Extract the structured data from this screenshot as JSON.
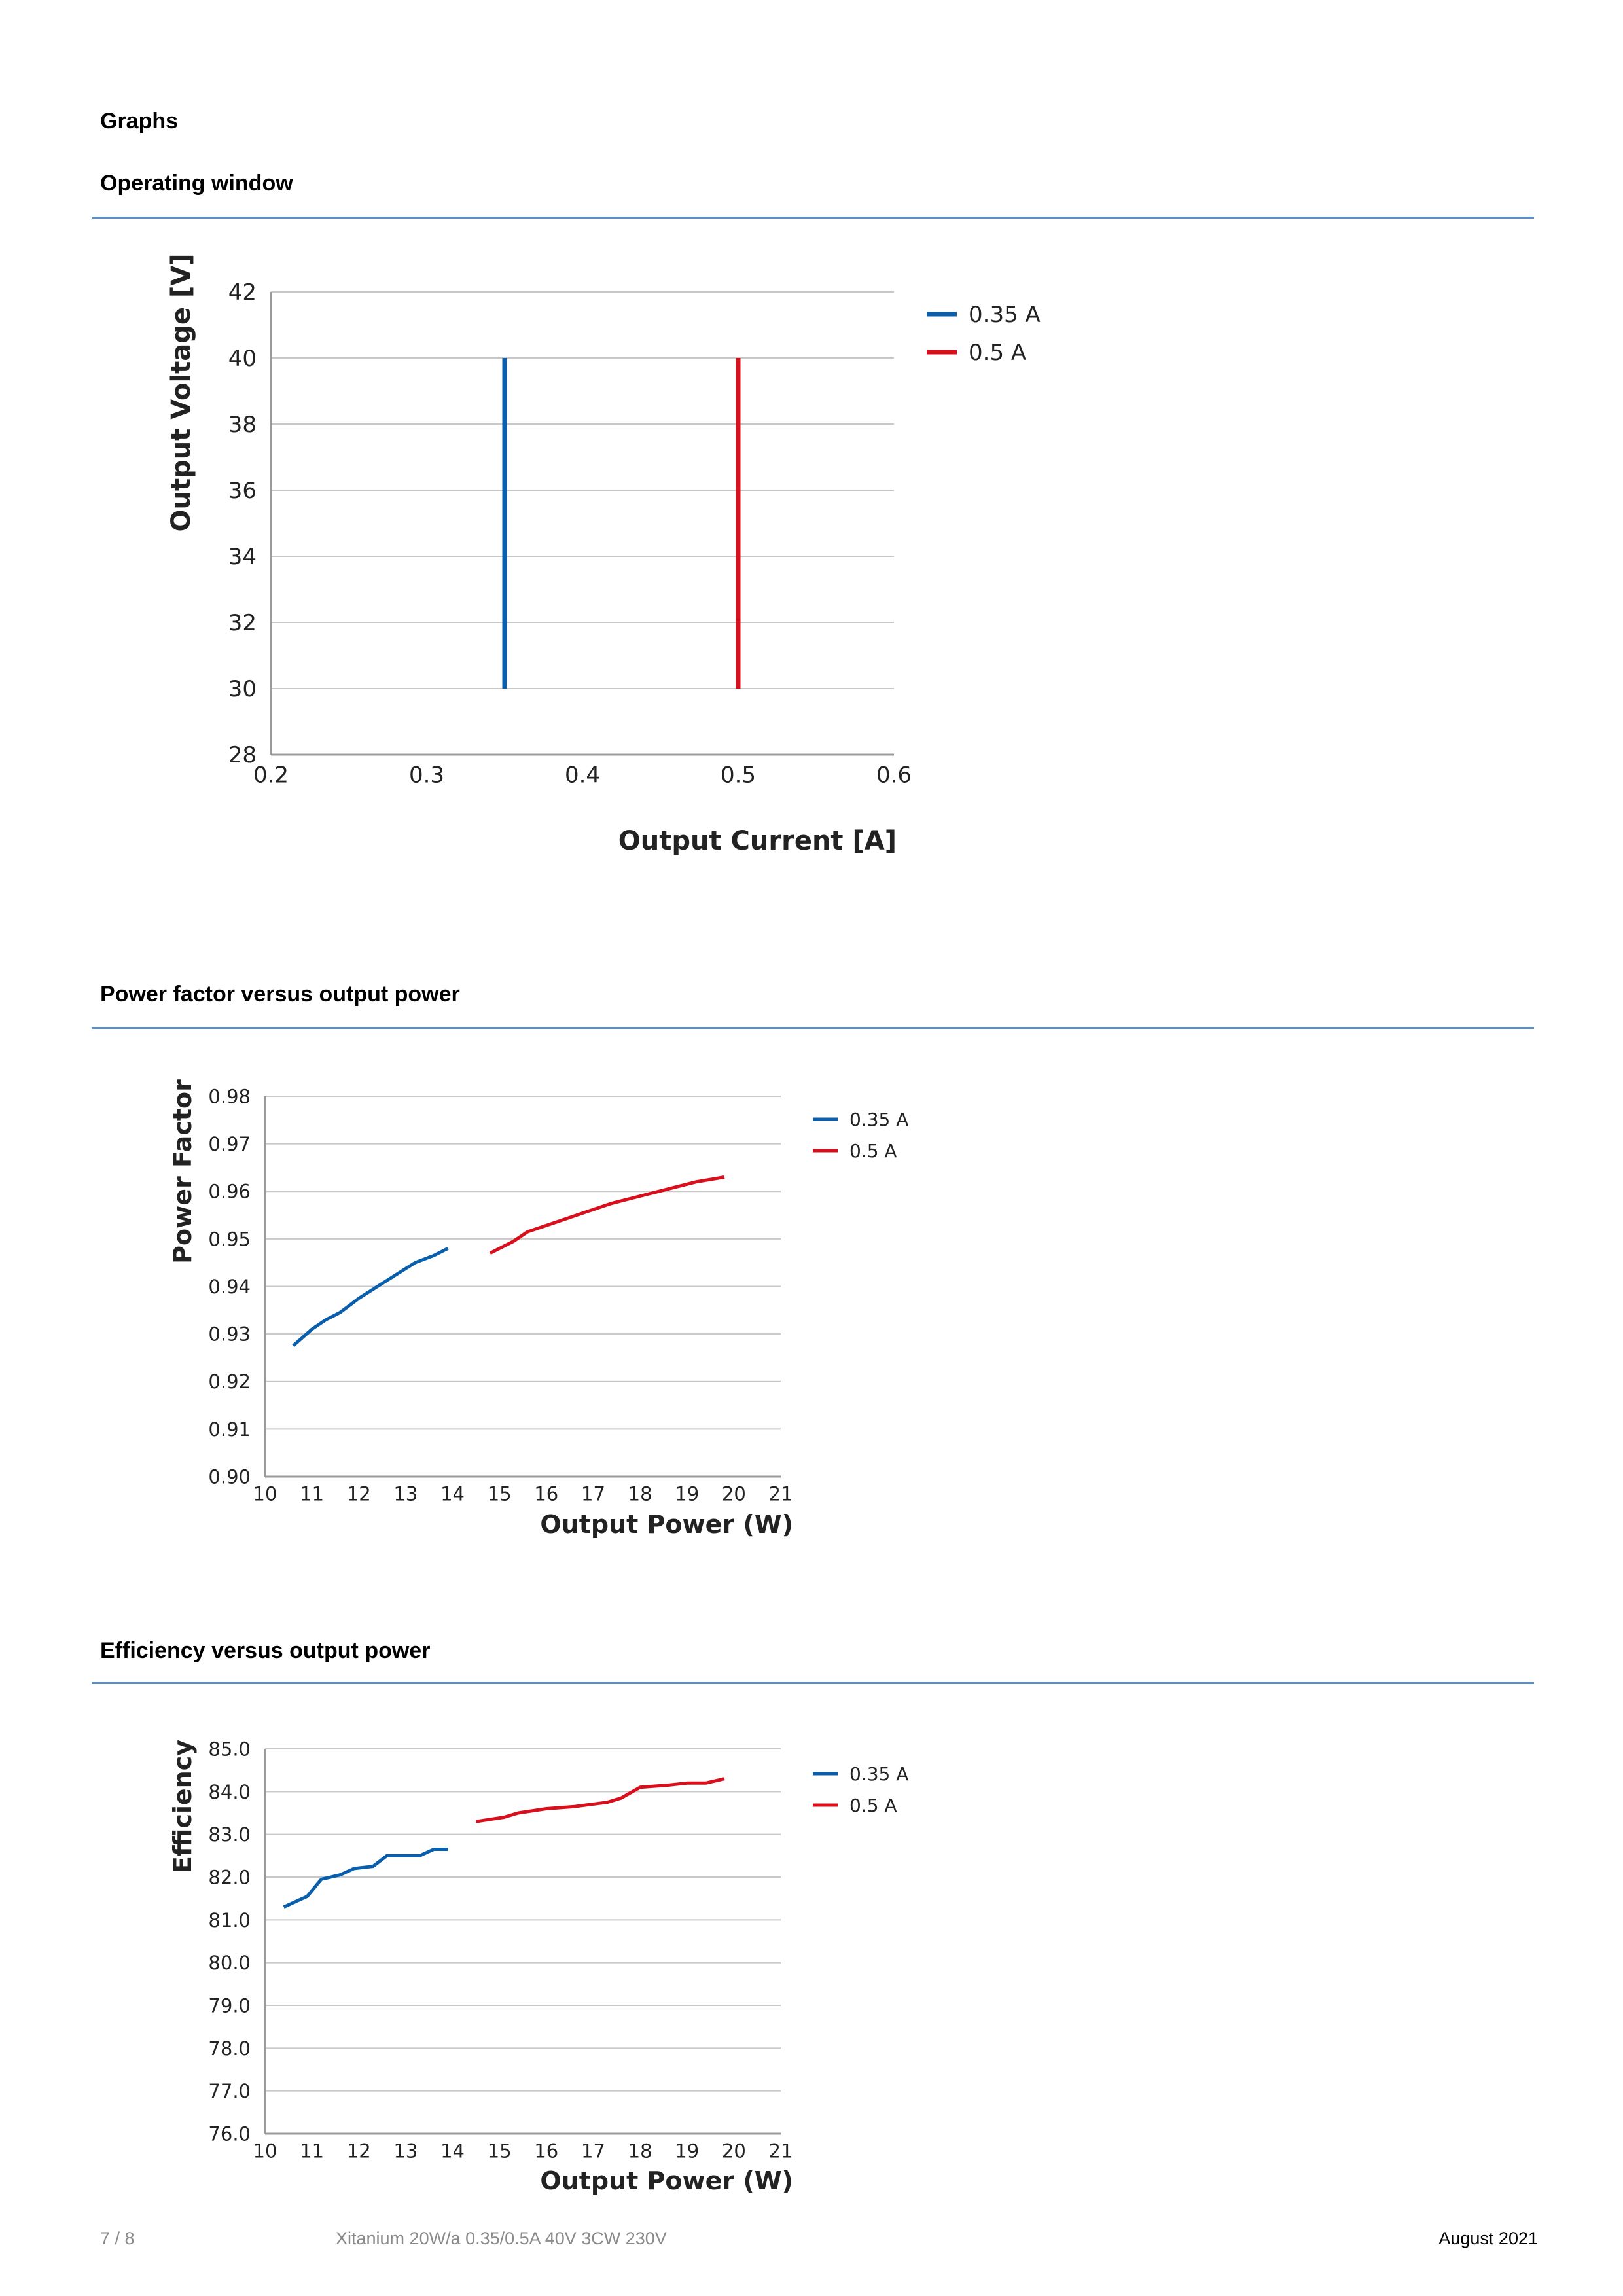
{
  "page": {
    "heading": "Graphs",
    "sections": [
      {
        "title": "Operating window"
      },
      {
        "title": "Power factor versus output power"
      },
      {
        "title": "Efficiency versus output power"
      }
    ],
    "footer": {
      "page_number": "7 / 8",
      "product": "Xitanium 20W/a 0.35/0.5A 40V 3CW 230V",
      "date": "August 2021"
    }
  },
  "colors": {
    "series_035": "#0a5fad",
    "series_05": "#d8101e",
    "rule": "#5b8ec7",
    "grid": "#c8c8c8"
  },
  "chart_data": [
    {
      "type": "line",
      "xlabel": "Output Current [A]",
      "ylabel": "Output Voltage [V]",
      "xlim": [
        0.2,
        0.6
      ],
      "ylim": [
        28,
        42
      ],
      "xticks": [
        "0.2",
        "0.3",
        "0.4",
        "0.5",
        "0.6"
      ],
      "yticks": [
        "28",
        "30",
        "32",
        "34",
        "36",
        "38",
        "40",
        "42"
      ],
      "grid": true,
      "legend_position": "right",
      "series": [
        {
          "name": "0.35 A",
          "color": "#0a5fad",
          "x": [
            0.35,
            0.35
          ],
          "y": [
            30,
            40
          ]
        },
        {
          "name": "0.5 A",
          "color": "#d8101e",
          "x": [
            0.5,
            0.5
          ],
          "y": [
            30,
            40
          ]
        }
      ]
    },
    {
      "type": "line",
      "xlabel": "Output Power (W)",
      "ylabel": "Power Factor",
      "xlim": [
        10,
        21
      ],
      "ylim": [
        0.9,
        0.98
      ],
      "xticks": [
        "10",
        "11",
        "12",
        "13",
        "14",
        "15",
        "16",
        "17",
        "18",
        "19",
        "20",
        "21"
      ],
      "yticks": [
        "0.90",
        "0.91",
        "0.92",
        "0.93",
        "0.94",
        "0.95",
        "0.96",
        "0.97",
        "0.98"
      ],
      "grid": true,
      "legend_position": "right",
      "series": [
        {
          "name": "0.35 A",
          "color": "#0a5fad",
          "x": [
            10.6,
            11.0,
            11.3,
            11.6,
            12.0,
            12.4,
            12.8,
            13.2,
            13.6,
            13.9
          ],
          "y": [
            0.9275,
            0.931,
            0.933,
            0.9345,
            0.9375,
            0.94,
            0.9425,
            0.945,
            0.9465,
            0.948
          ]
        },
        {
          "name": "0.5 A",
          "color": "#d8101e",
          "x": [
            14.8,
            15.3,
            15.6,
            16.2,
            16.8,
            17.4,
            18.0,
            18.6,
            19.2,
            19.8
          ],
          "y": [
            0.947,
            0.9495,
            0.9515,
            0.9535,
            0.9555,
            0.9575,
            0.959,
            0.9605,
            0.962,
            0.963
          ]
        }
      ]
    },
    {
      "type": "line",
      "xlabel": "Output Power (W)",
      "ylabel": "Efficiency",
      "xlim": [
        10,
        21
      ],
      "ylim": [
        76,
        85
      ],
      "xticks": [
        "10",
        "11",
        "12",
        "13",
        "14",
        "15",
        "16",
        "17",
        "18",
        "19",
        "20",
        "21"
      ],
      "yticks": [
        "76.0",
        "77.0",
        "78.0",
        "79.0",
        "80.0",
        "81.0",
        "82.0",
        "83.0",
        "84.0",
        "85.0"
      ],
      "grid": true,
      "legend_position": "right",
      "series": [
        {
          "name": "0.35 A",
          "color": "#0a5fad",
          "x": [
            10.4,
            10.9,
            11.2,
            11.6,
            11.9,
            12.3,
            12.6,
            12.8,
            13.3,
            13.6,
            13.9
          ],
          "y": [
            81.3,
            81.55,
            81.95,
            82.05,
            82.2,
            82.25,
            82.5,
            82.5,
            82.5,
            82.65,
            82.65
          ]
        },
        {
          "name": "0.5 A",
          "color": "#d8101e",
          "x": [
            14.5,
            15.1,
            15.4,
            16.0,
            16.6,
            17.3,
            17.6,
            18.0,
            18.6,
            19.0,
            19.4,
            19.8
          ],
          "y": [
            83.3,
            83.4,
            83.5,
            83.6,
            83.65,
            83.75,
            83.85,
            84.1,
            84.15,
            84.2,
            84.2,
            84.3
          ]
        }
      ]
    }
  ]
}
